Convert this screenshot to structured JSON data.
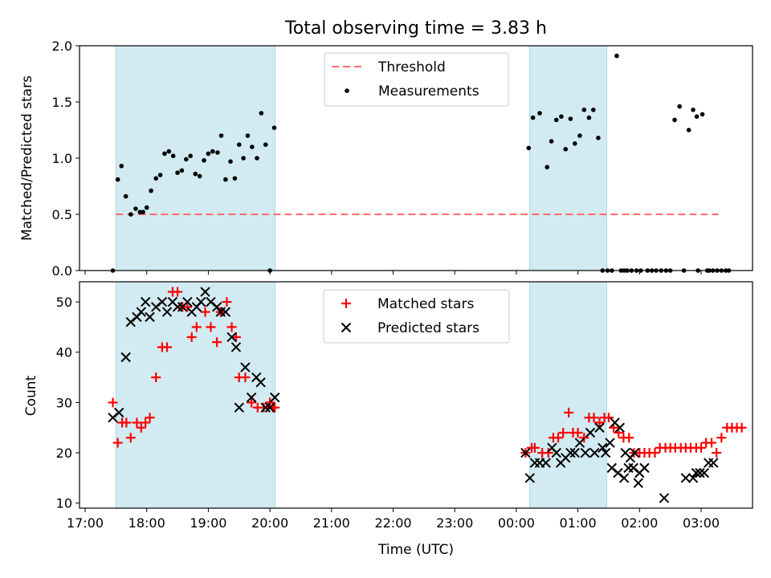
{
  "title": "Total observing time = 3.83 h",
  "colors": {
    "band": "#add8e6",
    "threshold": "#ff6b6b",
    "matched": "#ff0000",
    "predicted": "#000000",
    "measurement": "#000000"
  },
  "chart_data": [
    {
      "type": "scatter",
      "panel": "top",
      "ylabel": "Matched/Predicted stars",
      "ylim": [
        0,
        2.0
      ],
      "yticks": [
        "0.0",
        "0.5",
        "1.0",
        "1.5",
        "2.0"
      ],
      "x_unit": "hours since 17:00 UTC",
      "xlim": [
        -0.2,
        10.95
      ],
      "shaded_intervals": [
        [
          "17:30",
          "20:05"
        ],
        [
          "00:13",
          "01:28"
        ]
      ],
      "legend": [
        "Threshold",
        "Measurements"
      ],
      "legend_position": "upper center",
      "threshold": {
        "name": "Threshold",
        "y": 0.5,
        "x_start": "17:30",
        "x_end": "03:17"
      },
      "series": [
        {
          "name": "Measurements",
          "x": [
            0.45,
            0.53,
            0.59,
            0.66,
            0.74,
            0.82,
            0.89,
            0.94,
            1.0,
            1.07,
            1.15,
            1.22,
            1.29,
            1.36,
            1.43,
            1.5,
            1.57,
            1.64,
            1.71,
            1.79,
            1.86,
            1.93,
            2.0,
            2.07,
            2.15,
            2.21,
            2.28,
            2.36,
            2.43,
            2.5,
            2.57,
            2.64,
            2.71,
            2.79,
            2.86,
            2.93,
            3.0,
            3.07,
            7.2,
            7.27,
            7.38,
            7.5,
            7.57,
            7.65,
            7.73,
            7.8,
            7.88,
            7.95,
            8.03,
            8.1,
            8.18,
            8.25,
            8.33,
            8.4,
            8.48,
            8.55,
            8.63,
            8.7,
            8.75,
            8.8,
            8.87,
            8.95,
            9.02,
            9.13,
            9.2,
            9.27,
            9.35,
            9.43,
            9.5,
            9.57,
            9.65,
            9.72,
            9.8,
            9.87,
            9.93,
            9.95,
            10.02,
            10.1,
            10.13,
            10.19,
            10.26,
            10.33,
            10.4,
            10.45
          ],
          "y": [
            0.0,
            0.81,
            0.93,
            0.66,
            0.5,
            0.55,
            0.52,
            0.52,
            0.56,
            0.71,
            0.82,
            0.85,
            1.04,
            1.06,
            1.02,
            0.87,
            0.89,
            0.99,
            1.02,
            0.86,
            0.84,
            0.98,
            1.04,
            1.06,
            1.05,
            1.2,
            0.81,
            0.97,
            0.82,
            1.12,
            1.0,
            1.2,
            1.1,
            1.0,
            1.4,
            1.12,
            0.0,
            1.27,
            1.09,
            1.36,
            1.4,
            0.92,
            1.15,
            1.34,
            1.37,
            1.08,
            1.35,
            1.13,
            1.2,
            1.43,
            1.36,
            1.43,
            1.18,
            0.0,
            0.0,
            0.0,
            1.91,
            0.0,
            0.0,
            0.0,
            0.0,
            0.0,
            0.0,
            0.0,
            0.0,
            0.0,
            0.0,
            0.0,
            0.0,
            1.34,
            1.46,
            0.0,
            1.25,
            1.43,
            1.37,
            0.0,
            1.39,
            0.0,
            0.0,
            0.0,
            0.0,
            0.0,
            0.0,
            0.0
          ]
        }
      ]
    },
    {
      "type": "scatter",
      "panel": "bottom",
      "ylabel": "Count",
      "xlabel": "Time (UTC)",
      "ylim": [
        9,
        54
      ],
      "yticks": [
        "10",
        "20",
        "30",
        "40",
        "50"
      ],
      "xticks": [
        "17:00",
        "18:00",
        "19:00",
        "20:00",
        "21:00",
        "22:00",
        "23:00",
        "00:00",
        "01:00",
        "02:00",
        "03:00"
      ],
      "x_unit": "hours since 17:00 UTC",
      "xlim": [
        -0.2,
        10.95
      ],
      "shaded_intervals": [
        [
          "17:30",
          "20:05"
        ],
        [
          "00:13",
          "01:28"
        ]
      ],
      "legend": [
        "Matched stars",
        "Predicted stars"
      ],
      "legend_position": "upper center",
      "series": [
        {
          "name": "Matched stars",
          "marker": "+",
          "x": [
            0.45,
            0.53,
            0.6,
            0.67,
            0.74,
            0.84,
            0.91,
            0.98,
            1.05,
            1.15,
            1.25,
            1.33,
            1.42,
            1.5,
            1.58,
            1.66,
            1.73,
            1.81,
            1.95,
            2.04,
            2.14,
            2.2,
            2.3,
            2.38,
            2.45,
            2.5,
            2.6,
            2.7,
            2.8,
            2.9,
            3.0,
            3.05,
            3.08,
            7.15,
            7.25,
            7.3,
            7.42,
            7.52,
            7.6,
            7.68,
            7.76,
            7.85,
            7.92,
            8.0,
            8.1,
            8.18,
            8.26,
            8.35,
            8.43,
            8.5,
            8.58,
            8.66,
            8.74,
            8.83,
            8.91,
            9.0,
            9.08,
            9.16,
            9.25,
            9.33,
            9.42,
            9.5,
            9.58,
            9.67,
            9.75,
            9.83,
            9.92,
            10.0,
            10.08,
            10.17,
            10.25,
            10.33,
            10.42
          ],
          "y": [
            30,
            22,
            26,
            26,
            23,
            26,
            25,
            26,
            27,
            35,
            41,
            41,
            52,
            52,
            49,
            49,
            43,
            45,
            48,
            45,
            42,
            48,
            50,
            45,
            43,
            35,
            35,
            30,
            29,
            29,
            30,
            29,
            29,
            20,
            21,
            21,
            20,
            20,
            23,
            23,
            24,
            28,
            24,
            24,
            23,
            27,
            27,
            26,
            27,
            27,
            25,
            24,
            23,
            23,
            20,
            20,
            20,
            20,
            20,
            21,
            21,
            21,
            21,
            21,
            21,
            21,
            21,
            21,
            22,
            22,
            20,
            23,
            25
          ],
          "y_end": 25,
          "x_tail": [
            10.5,
            10.58,
            10.66
          ],
          "y_tail": [
            25,
            25,
            25
          ]
        },
        {
          "name": "Predicted stars",
          "marker": "x",
          "x": [
            0.45,
            0.55,
            0.66,
            0.74,
            0.84,
            0.91,
            0.98,
            1.05,
            1.15,
            1.25,
            1.33,
            1.42,
            1.5,
            1.58,
            1.66,
            1.73,
            1.81,
            1.88,
            1.95,
            2.04,
            2.14,
            2.2,
            2.28,
            2.38,
            2.45,
            2.5,
            2.6,
            2.7,
            2.78,
            2.85,
            2.93,
            3.0,
            3.08,
            7.15,
            7.22,
            7.3,
            7.38,
            7.48,
            7.58,
            7.65,
            7.72,
            7.8,
            7.88,
            7.95,
            8.03,
            8.12,
            8.2,
            8.27,
            8.35,
            8.45,
            8.52,
            8.6,
            8.68,
            8.77,
            8.85,
            8.92,
            9.0,
            9.08,
            9.75,
            9.87,
            9.92,
            9.98,
            10.05,
            10.12,
            10.2
          ],
          "y": [
            27,
            28,
            39,
            46,
            47,
            48,
            50,
            47,
            49,
            50,
            48,
            50,
            49,
            49,
            50,
            48,
            49,
            50,
            52,
            50,
            49,
            48,
            48,
            43,
            41,
            29,
            37,
            31,
            35,
            34,
            29,
            29,
            31,
            20,
            15,
            18,
            18,
            18,
            21,
            20,
            18,
            19,
            20,
            20,
            22,
            20,
            24,
            20,
            25,
            20,
            22,
            26,
            25,
            20,
            19,
            20,
            16,
            17,
            15,
            15,
            16,
            16,
            16,
            18,
            18
          ],
          "x_extra": [
            8.4,
            8.55,
            8.65,
            8.75,
            8.82,
            8.9,
            8.98,
            9.4
          ],
          "y_extra": [
            21,
            17,
            16,
            15,
            17,
            17,
            14,
            11
          ]
        }
      ]
    }
  ]
}
